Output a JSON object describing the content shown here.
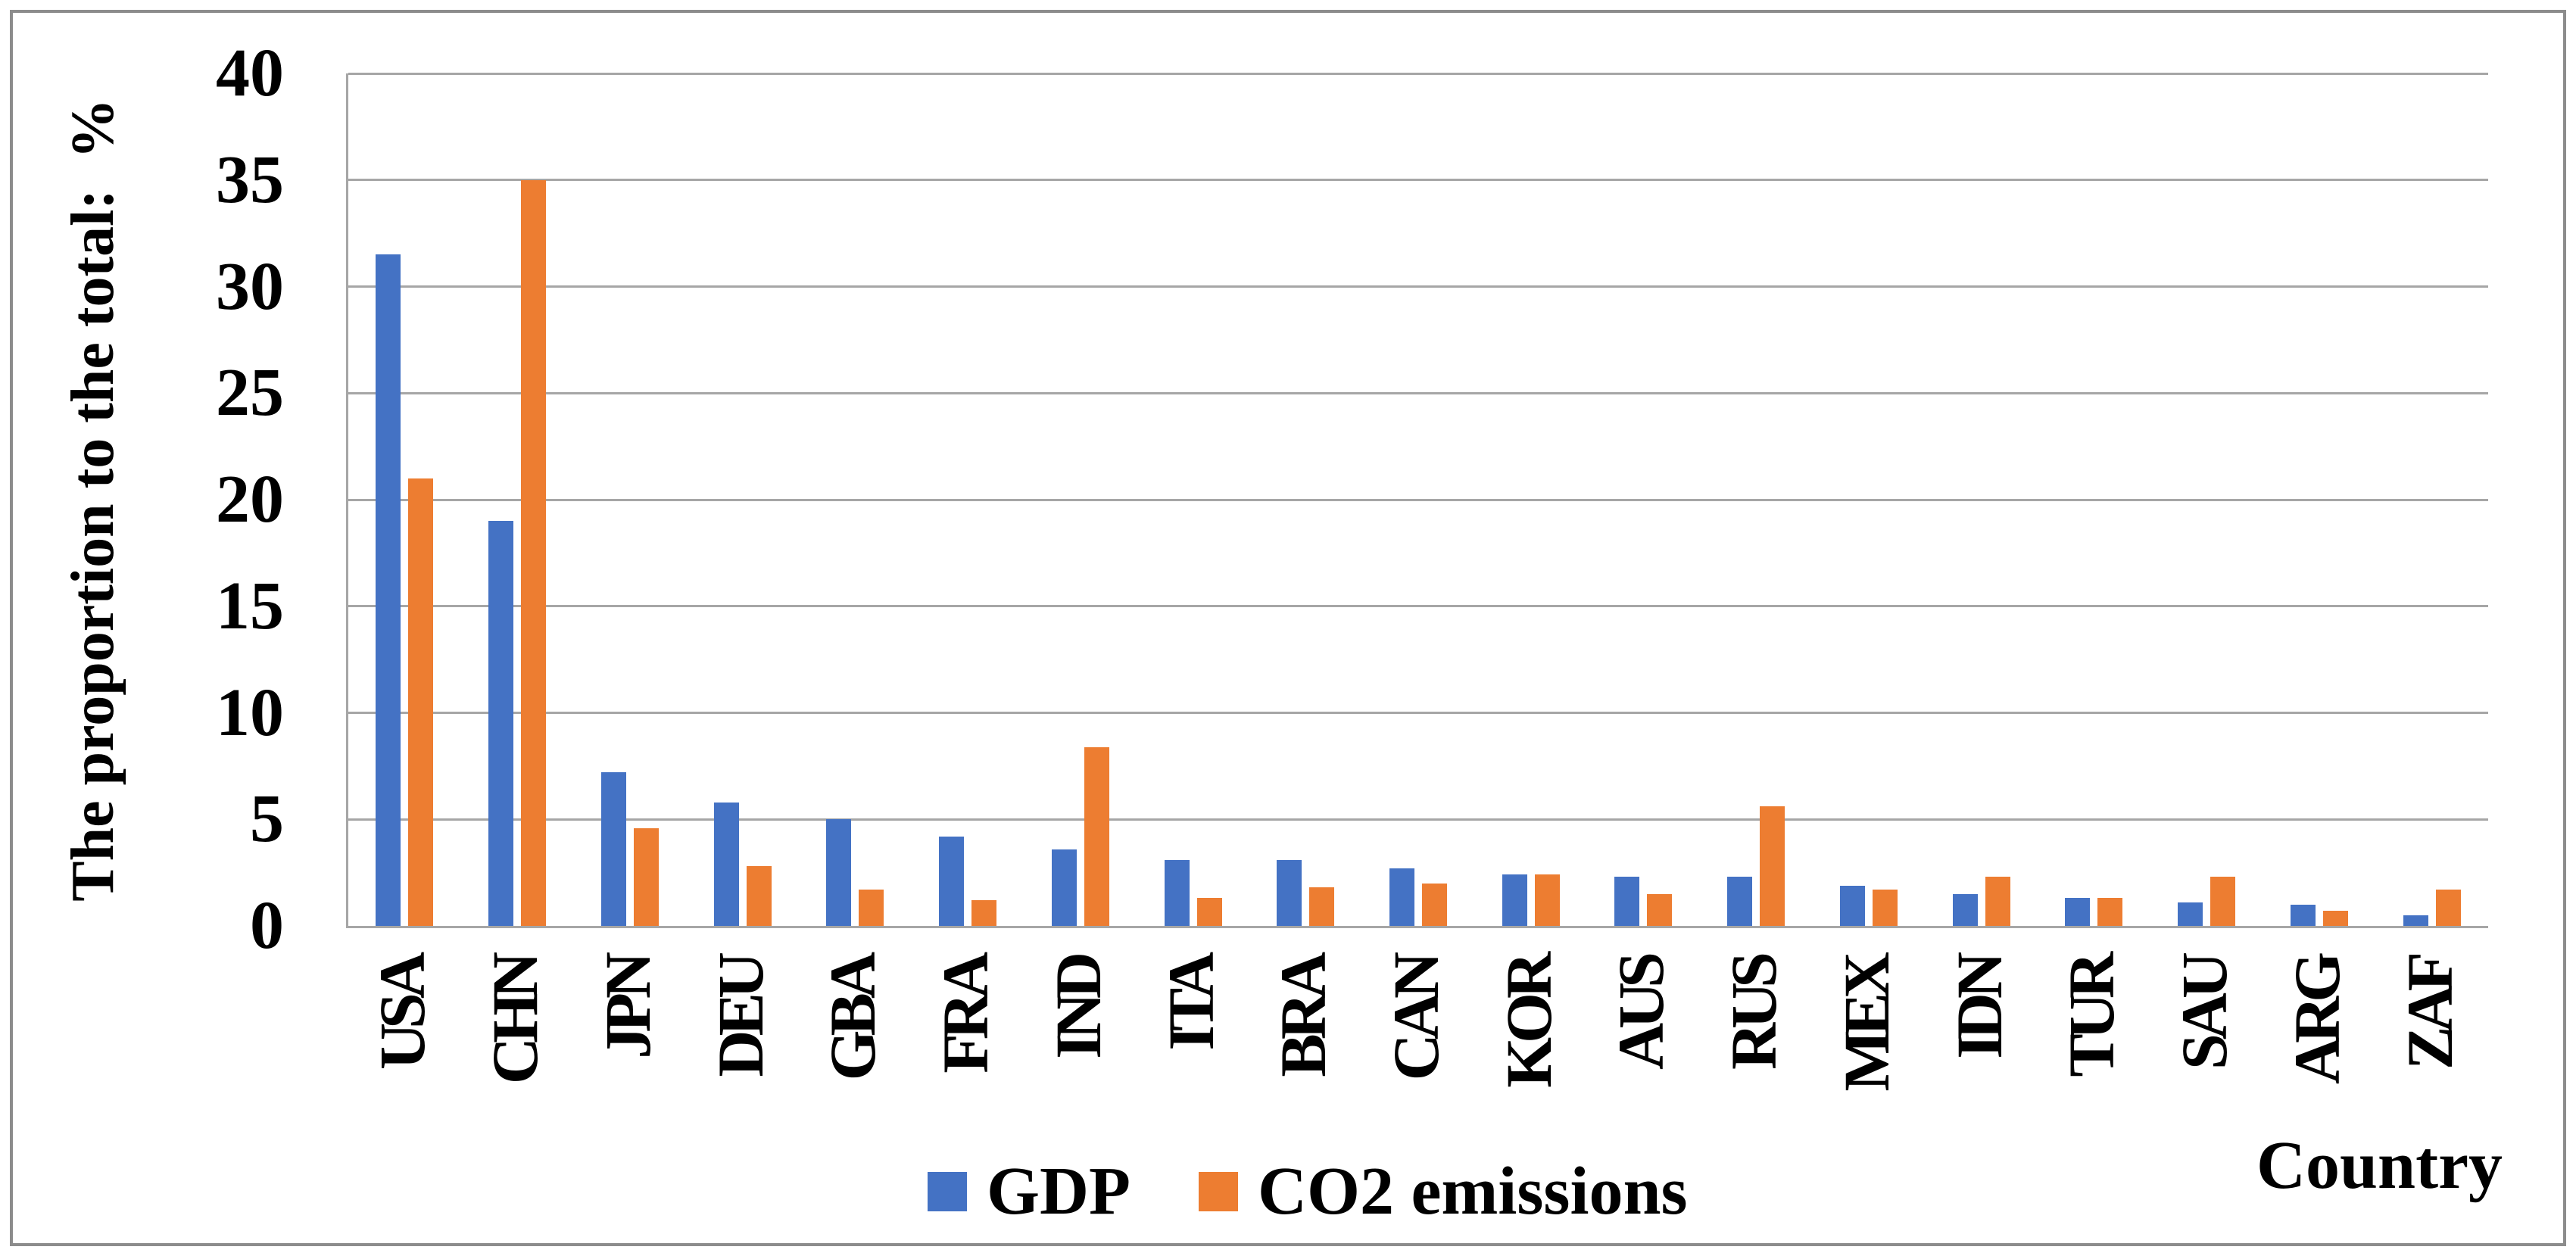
{
  "figure": {
    "background": "#ffffff",
    "border_color": "#8c8c8c"
  },
  "chart_data": {
    "type": "bar",
    "title": "",
    "xlabel": "Country",
    "ylabel": "The proportion to the total:  %",
    "ylim": [
      0,
      40
    ],
    "yticks": [
      0,
      5,
      10,
      15,
      20,
      25,
      30,
      35,
      40
    ],
    "grid": "horizontal",
    "gridline_color": "#a6a6a6",
    "legend_position": "bottom-center",
    "categories": [
      "USA",
      "CHN",
      "JPN",
      "DEU",
      "GBA",
      "FRA",
      "IND",
      "ITA",
      "BRA",
      "CAN",
      "KOR",
      "AUS",
      "RUS",
      "MEX",
      "IDN",
      "TUR",
      "SAU",
      "ARG",
      "ZAF"
    ],
    "series": [
      {
        "name": "GDP",
        "color": "#4472C4",
        "values": [
          31.5,
          19.0,
          7.2,
          5.8,
          5.0,
          4.2,
          3.6,
          3.1,
          3.1,
          2.7,
          2.4,
          2.3,
          2.3,
          1.9,
          1.5,
          1.3,
          1.1,
          1.0,
          0.5
        ]
      },
      {
        "name": "CO2 emissions",
        "color": "#ED7D31",
        "values": [
          21.0,
          35.0,
          4.6,
          2.8,
          1.7,
          1.2,
          8.4,
          1.3,
          1.8,
          2.0,
          2.4,
          1.5,
          5.6,
          1.7,
          2.3,
          1.3,
          2.3,
          0.7,
          1.7
        ]
      }
    ]
  }
}
